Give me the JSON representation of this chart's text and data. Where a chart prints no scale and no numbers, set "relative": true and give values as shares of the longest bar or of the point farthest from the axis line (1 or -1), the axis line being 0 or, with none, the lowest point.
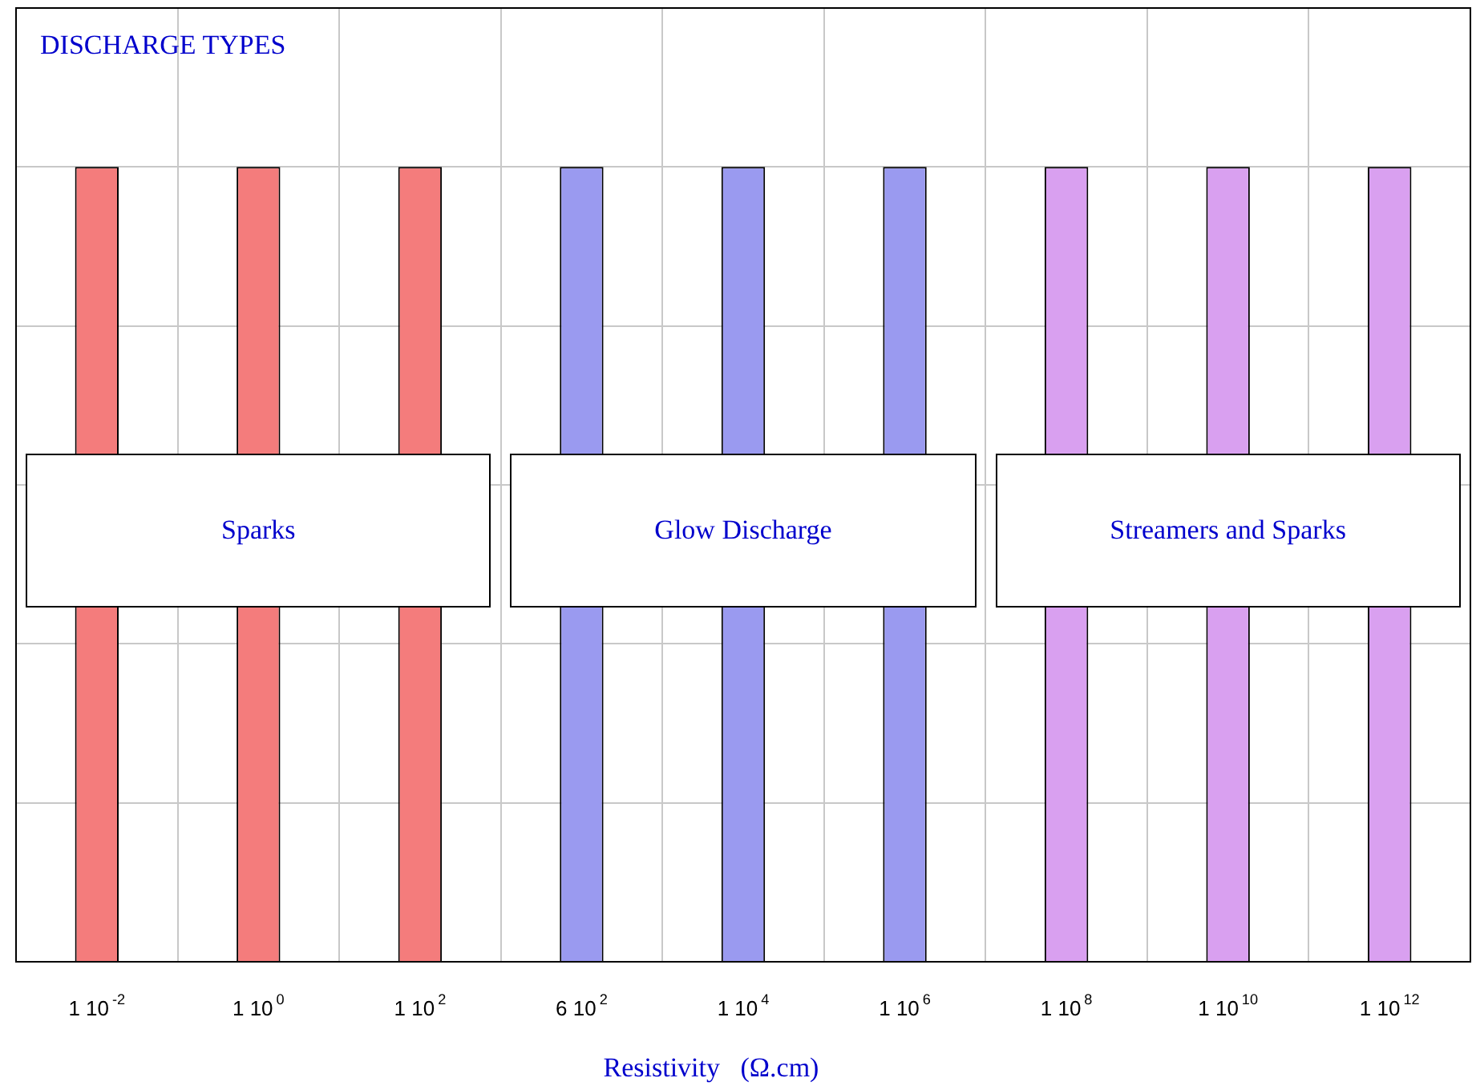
{
  "chart_data": {
    "type": "bar",
    "title": "DISCHARGE TYPES",
    "xlabel": "Resistivity   (Ω.cm)",
    "relative": true,
    "grid": true,
    "categories": [
      "1 10$^{-2}$",
      "1 10$^{0}$",
      "1 10$^{2}$",
      "6 10$^{2}$",
      "1 10$^{4}$",
      "1 10$^{6}$",
      "1 10$^{8}$",
      "1 10$^{10}$",
      "1 10$^{12}$"
    ],
    "values": [
      1,
      1,
      1,
      1,
      1,
      1,
      1,
      1,
      1
    ],
    "colors": [
      "#f47c7c",
      "#f47c7c",
      "#f47c7c",
      "#9a9af0",
      "#9a9af0",
      "#9a9af0",
      "#d9a0f0",
      "#d9a0f0",
      "#d9a0f0"
    ],
    "annotations": [
      "Sparks",
      "Glow Discharge",
      "Streamers and Sparks"
    ]
  }
}
